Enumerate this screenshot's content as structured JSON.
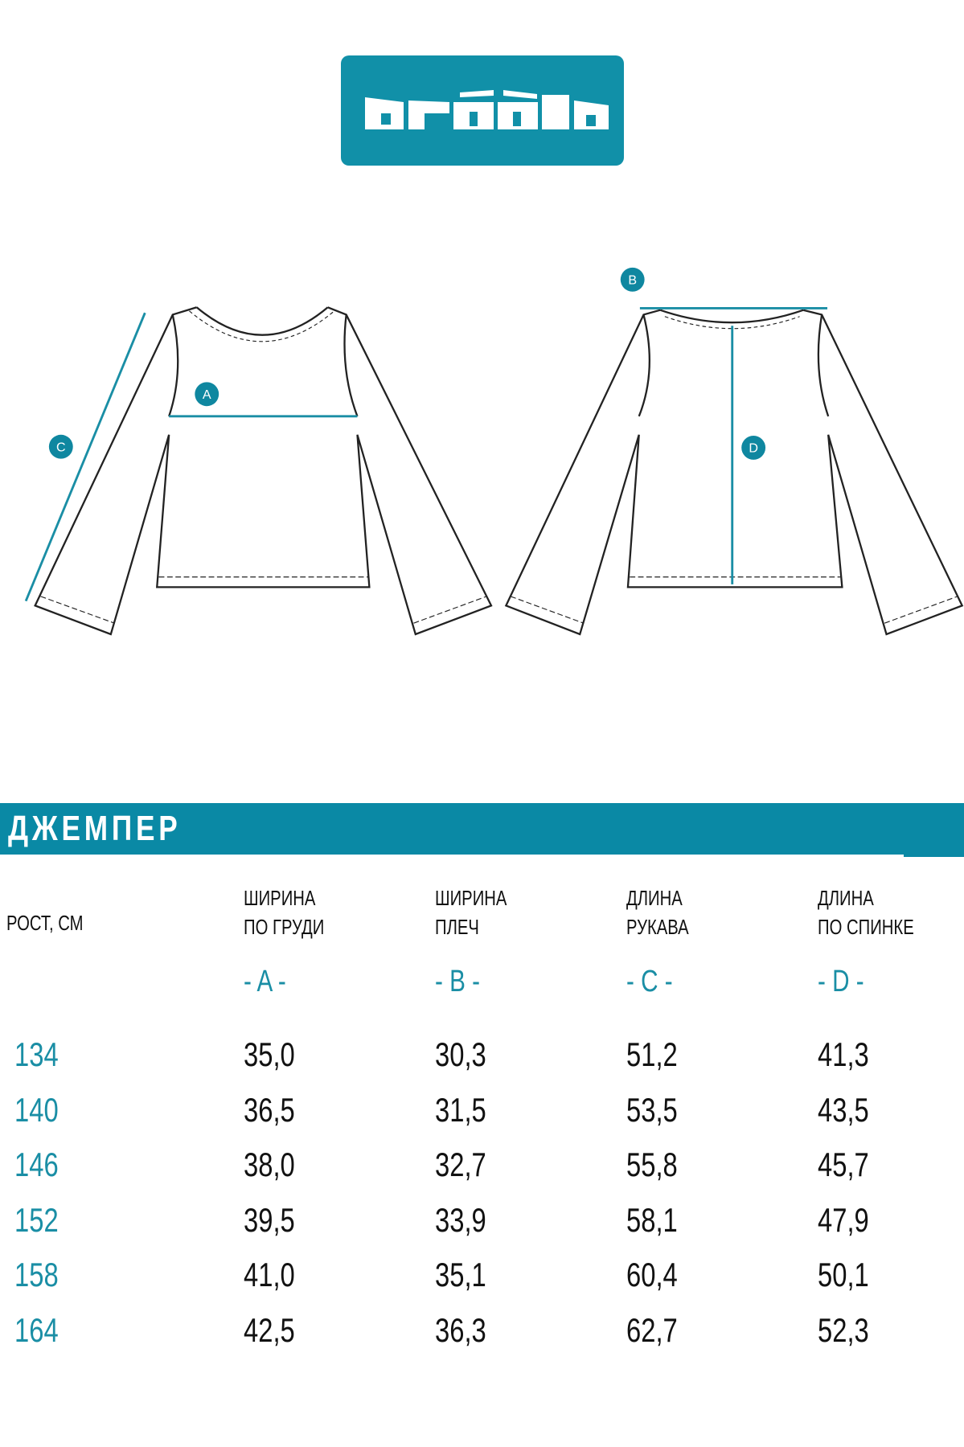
{
  "brand": {
    "logo_text": "acòòla",
    "color": "#0a89a5"
  },
  "diagram": {
    "markers": [
      "A",
      "B",
      "C",
      "D"
    ]
  },
  "section_title": "ДЖЕМПЕР",
  "table": {
    "columns": [
      {
        "line1": "РОСТ, СМ",
        "line2": "",
        "letter": ""
      },
      {
        "line1": "ШИРИНА",
        "line2": "ПО ГРУДИ",
        "letter": "- A -"
      },
      {
        "line1": "ШИРИНА",
        "line2": "ПЛЕЧ",
        "letter": "- B -"
      },
      {
        "line1": "ДЛИНА",
        "line2": "РУКАВА",
        "letter": "- C -"
      },
      {
        "line1": "ДЛИНА",
        "line2": "ПО СПИНКЕ",
        "letter": "- D -"
      }
    ],
    "rows": [
      [
        "134",
        "35,0",
        "30,3",
        "51,2",
        "41,3"
      ],
      [
        "140",
        "36,5",
        "31,5",
        "53,5",
        "43,5"
      ],
      [
        "146",
        "38,0",
        "32,7",
        "55,8",
        "45,7"
      ],
      [
        "152",
        "39,5",
        "33,9",
        "58,1",
        "47,9"
      ],
      [
        "158",
        "41,0",
        "35,1",
        "60,4",
        "50,1"
      ],
      [
        "164",
        "42,5",
        "36,3",
        "62,7",
        "52,3"
      ]
    ]
  }
}
